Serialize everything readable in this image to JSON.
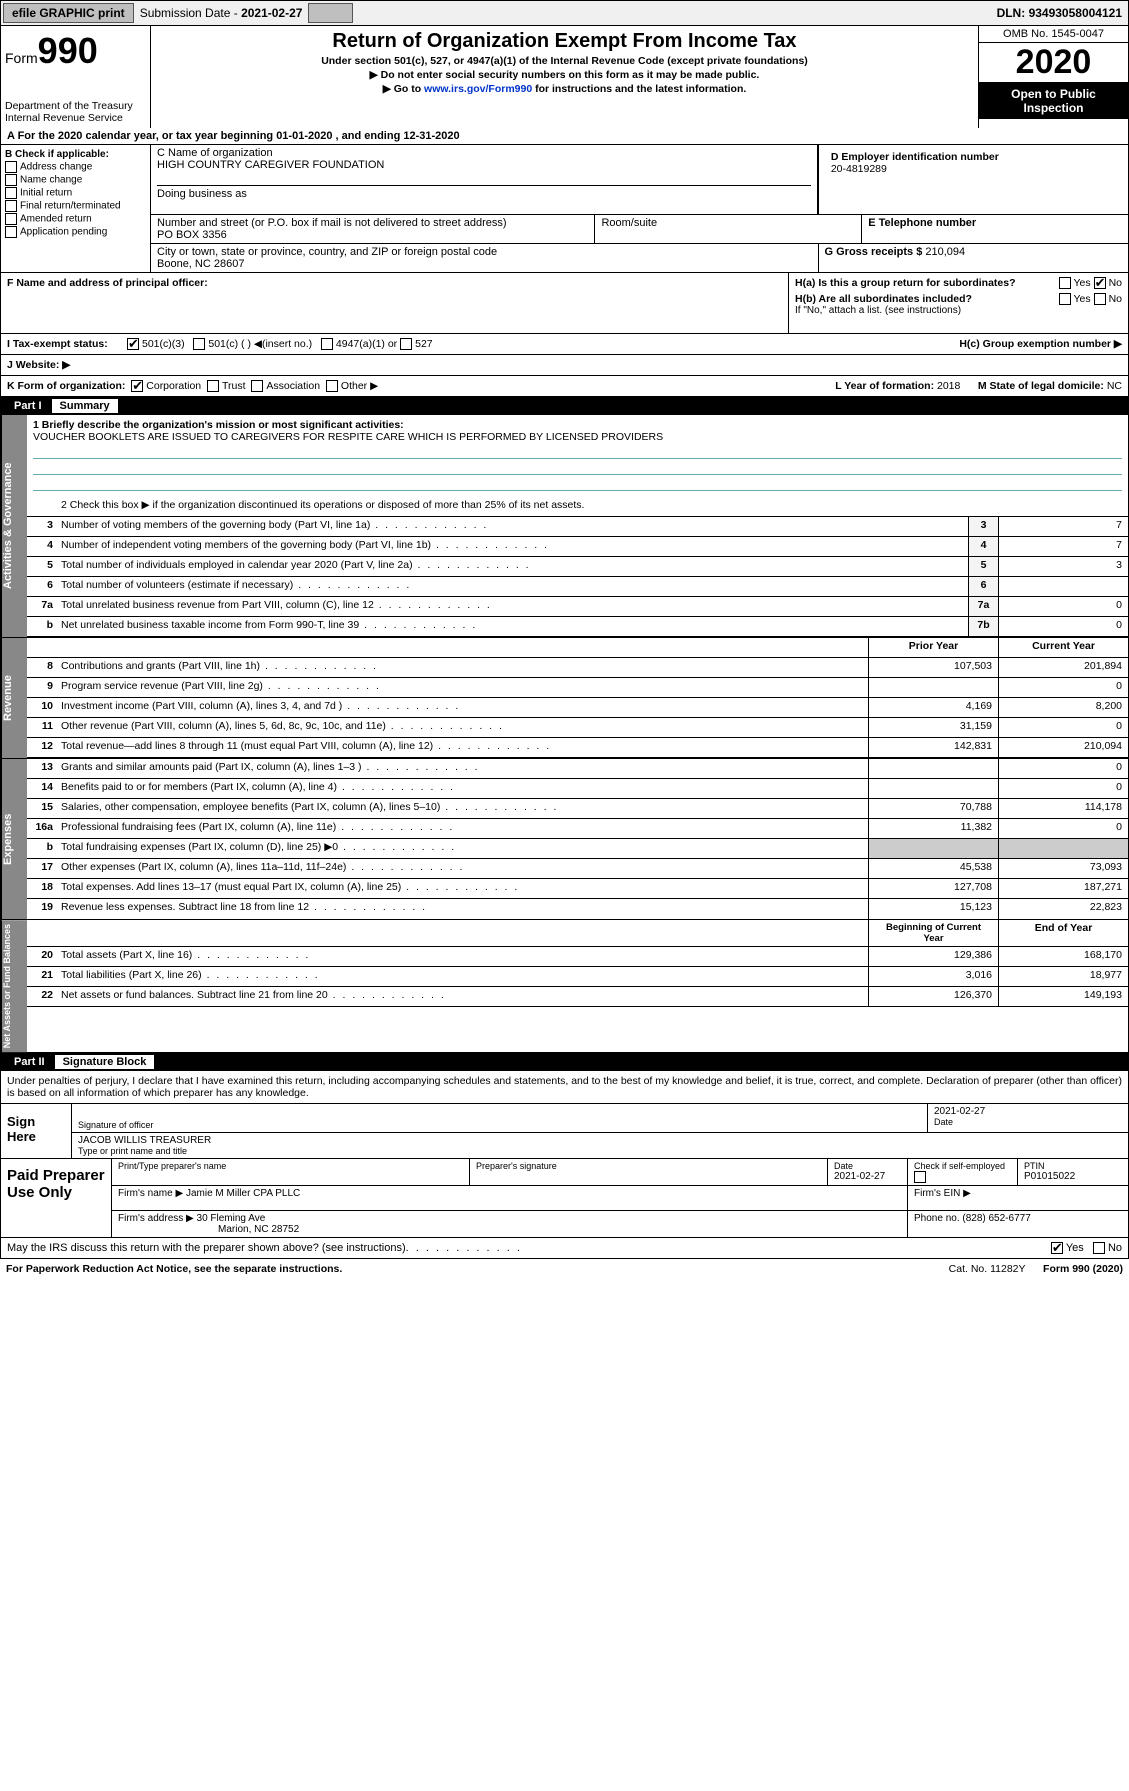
{
  "topbar": {
    "efile": "efile GRAPHIC print",
    "subdate_lbl": "Submission Date - ",
    "subdate": "2021-02-27",
    "dln_lbl": "DLN: ",
    "dln": "93493058004121"
  },
  "header": {
    "form": "Form",
    "num": "990",
    "dept": "Department of the Treasury\nInternal Revenue Service",
    "title": "Return of Organization Exempt From Income Tax",
    "sub1": "Under section 501(c), 527, or 4947(a)(1) of the Internal Revenue Code (except private foundations)",
    "sub2": "▶ Do not enter social security numbers on this form as it may be made public.",
    "sub3_pre": "▶ Go to ",
    "sub3_link": "www.irs.gov/Form990",
    "sub3_post": " for instructions and the latest information.",
    "omb": "OMB No. 1545-0047",
    "year": "2020",
    "open": "Open to Public Inspection"
  },
  "lineA": "A    For the 2020 calendar year, or tax year beginning 01-01-2020    , and ending 12-31-2020",
  "boxB": {
    "title": "B Check if applicable:",
    "opts": [
      "Address change",
      "Name change",
      "Initial return",
      "Final return/terminated",
      "Amended return",
      "Application pending"
    ]
  },
  "boxC": {
    "lbl": "C Name of organization",
    "name": "HIGH COUNTRY CAREGIVER FOUNDATION",
    "dba": "Doing business as",
    "addr_lbl": "Number and street (or P.O. box if mail is not delivered to street address)",
    "room": "Room/suite",
    "addr": "PO BOX 3356",
    "city_lbl": "City or town, state or province, country, and ZIP or foreign postal code",
    "city": "Boone, NC  28607"
  },
  "boxD": {
    "lbl": "D Employer identification number",
    "val": "20-4819289"
  },
  "boxE": {
    "lbl": "E Telephone number",
    "val": ""
  },
  "boxG": {
    "lbl": "G Gross receipts $ ",
    "val": "210,094"
  },
  "boxF": {
    "lbl": "F  Name and address of principal officer:"
  },
  "boxH": {
    "a": "H(a)  Is this a group return for subordinates?",
    "b": "H(b)  Are all subordinates included?",
    "bnote": "If \"No,\" attach a list. (see instructions)",
    "c": "H(c)  Group exemption number ▶",
    "yes": "Yes",
    "no": "No"
  },
  "taxstatus": {
    "lbl": "I    Tax-exempt status:",
    "o1": "501(c)(3)",
    "o2": "501(c) (  ) ◀(insert no.)",
    "o3": "4947(a)(1) or",
    "o4": "527"
  },
  "website": {
    "lbl": "J    Website: ▶"
  },
  "rowK": {
    "lbl": "K Form of organization:",
    "opts": [
      "Corporation",
      "Trust",
      "Association",
      "Other ▶"
    ],
    "L": "L Year of formation: ",
    "Lval": "2018",
    "M": "M State of legal domicile: ",
    "Mval": "NC"
  },
  "part1": {
    "num": "Part I",
    "title": "Summary"
  },
  "mission": {
    "q": "1  Briefly describe the organization's mission or most significant activities:",
    "txt": "VOUCHER BOOKLETS ARE ISSUED TO CAREGIVERS FOR RESPITE CARE WHICH IS PERFORMED BY LICENSED PROVIDERS"
  },
  "line2": "2    Check this box ▶    if the organization discontinued its operations or disposed of more than 25% of its net assets.",
  "govRows": [
    {
      "n": "3",
      "t": "Number of voting members of the governing body (Part VI, line 1a)",
      "b": "3",
      "v": "7"
    },
    {
      "n": "4",
      "t": "Number of independent voting members of the governing body (Part VI, line 1b)",
      "b": "4",
      "v": "7"
    },
    {
      "n": "5",
      "t": "Total number of individuals employed in calendar year 2020 (Part V, line 2a)",
      "b": "5",
      "v": "3"
    },
    {
      "n": "6",
      "t": "Total number of volunteers (estimate if necessary)",
      "b": "6",
      "v": ""
    },
    {
      "n": "7a",
      "t": "Total unrelated business revenue from Part VIII, column (C), line 12",
      "b": "7a",
      "v": "0"
    },
    {
      "n": "b",
      "t": "Net unrelated business taxable income from Form 990-T, line 39",
      "b": "7b",
      "v": "0"
    }
  ],
  "colHdr": {
    "py": "Prior Year",
    "cy": "Current Year"
  },
  "revRows": [
    {
      "n": "8",
      "t": "Contributions and grants (Part VIII, line 1h)",
      "p": "107,503",
      "c": "201,894"
    },
    {
      "n": "9",
      "t": "Program service revenue (Part VIII, line 2g)",
      "p": "",
      "c": "0"
    },
    {
      "n": "10",
      "t": "Investment income (Part VIII, column (A), lines 3, 4, and 7d )",
      "p": "4,169",
      "c": "8,200"
    },
    {
      "n": "11",
      "t": "Other revenue (Part VIII, column (A), lines 5, 6d, 8c, 9c, 10c, and 11e)",
      "p": "31,159",
      "c": "0"
    },
    {
      "n": "12",
      "t": "Total revenue—add lines 8 through 11 (must equal Part VIII, column (A), line 12)",
      "p": "142,831",
      "c": "210,094"
    }
  ],
  "expRows": [
    {
      "n": "13",
      "t": "Grants and similar amounts paid (Part IX, column (A), lines 1–3 )",
      "p": "",
      "c": "0"
    },
    {
      "n": "14",
      "t": "Benefits paid to or for members (Part IX, column (A), line 4)",
      "p": "",
      "c": "0"
    },
    {
      "n": "15",
      "t": "Salaries, other compensation, employee benefits (Part IX, column (A), lines 5–10)",
      "p": "70,788",
      "c": "114,178"
    },
    {
      "n": "16a",
      "t": "Professional fundraising fees (Part IX, column (A), line 11e)",
      "p": "11,382",
      "c": "0"
    },
    {
      "n": "b",
      "t": "Total fundraising expenses (Part IX, column (D), line 25) ▶0",
      "p": "—",
      "c": "—"
    },
    {
      "n": "17",
      "t": "Other expenses (Part IX, column (A), lines 11a–11d, 11f–24e)",
      "p": "45,538",
      "c": "73,093"
    },
    {
      "n": "18",
      "t": "Total expenses. Add lines 13–17 (must equal Part IX, column (A), line 25)",
      "p": "127,708",
      "c": "187,271"
    },
    {
      "n": "19",
      "t": "Revenue less expenses. Subtract line 18 from line 12",
      "p": "15,123",
      "c": "22,823"
    }
  ],
  "naHdr": {
    "b": "Beginning of Current Year",
    "e": "End of Year"
  },
  "naRows": [
    {
      "n": "20",
      "t": "Total assets (Part X, line 16)",
      "p": "129,386",
      "c": "168,170"
    },
    {
      "n": "21",
      "t": "Total liabilities (Part X, line 26)",
      "p": "3,016",
      "c": "18,977"
    },
    {
      "n": "22",
      "t": "Net assets or fund balances. Subtract line 21 from line 20",
      "p": "126,370",
      "c": "149,193"
    }
  ],
  "tabs": {
    "gov": "Activities & Governance",
    "rev": "Revenue",
    "exp": "Expenses",
    "na": "Net Assets or Fund Balances"
  },
  "part2": {
    "num": "Part II",
    "title": "Signature Block"
  },
  "perjury": "Under penalties of perjury, I declare that I have examined this return, including accompanying schedules and statements, and to the best of my knowledge and belief, it is true, correct, and complete. Declaration of preparer (other than officer) is based on all information of which preparer has any knowledge.",
  "sign": {
    "here": "Sign Here",
    "sigoff": "Signature of officer",
    "date": "2021-02-27",
    "datel": "Date",
    "name": "JACOB WILLIS  TREASURER",
    "namel": "Type or print name and title"
  },
  "paid": {
    "lbl": "Paid Preparer Use Only",
    "h1": "Print/Type preparer's name",
    "h2": "Preparer's signature",
    "h3": "Date",
    "h4": "Check       if self-employed",
    "h5": "PTIN",
    "date": "2021-02-27",
    "ptin": "P01015022",
    "firm_lbl": "Firm's name    ▶",
    "firm": "Jamie M Miller CPA PLLC",
    "ein": "Firm's EIN ▶",
    "addr_lbl": "Firm's address ▶",
    "addr1": "30 Fleming Ave",
    "addr2": "Marion, NC  28752",
    "phone_lbl": "Phone no. ",
    "phone": "(828) 652-6777"
  },
  "discuss": "May the IRS discuss this return with the preparer shown above? (see instructions)",
  "footer": {
    "pra": "For Paperwork Reduction Act Notice, see the separate instructions.",
    "cat": "Cat. No. 11282Y",
    "form": "Form 990 (2020)"
  },
  "colors": {
    "link": "#0033cc"
  }
}
